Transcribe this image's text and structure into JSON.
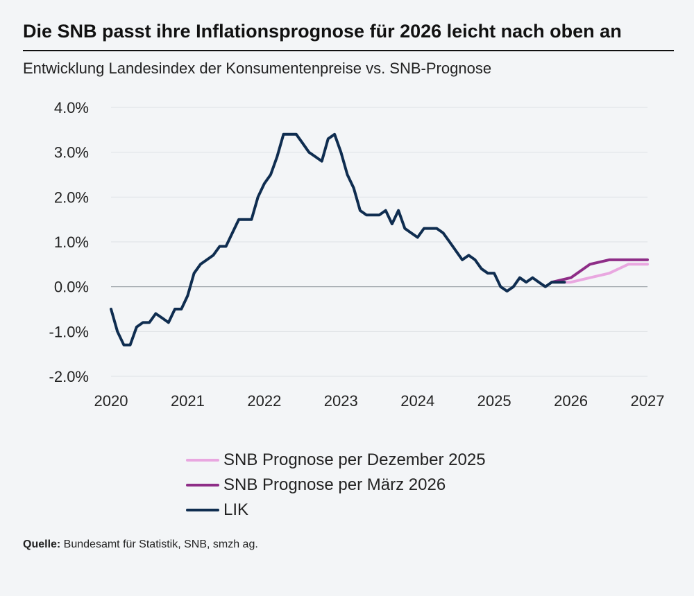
{
  "header": {
    "title": "Die SNB passt ihre Inflationsprognose für 2026 leicht nach oben an",
    "subtitle": "Entwicklung Landesindex der Konsumentenpreise vs. SNB-Prognose"
  },
  "legend": {
    "items": [
      {
        "label": "SNB Prognose per Dezember 2025",
        "color": "#e9a7e0"
      },
      {
        "label": "SNB Prognose per März 2026",
        "color": "#8e2d87"
      },
      {
        "label": "LIK",
        "color": "#0f2d50"
      }
    ]
  },
  "source": {
    "label": "Quelle:",
    "text": " Bundesamt für Statistik, SNB, smzh ag."
  },
  "chart_data": {
    "type": "line",
    "title": "Die SNB passt ihre Inflationsprognose für 2026 leicht nach oben an",
    "xlabel": "",
    "ylabel": "",
    "xlim": [
      2020,
      2027
    ],
    "ylim": [
      -2.0,
      4.0
    ],
    "x_ticks": [
      2020,
      2021,
      2022,
      2023,
      2024,
      2025,
      2026,
      2027
    ],
    "x_tick_labels": [
      "2020",
      "2021",
      "2022",
      "2023",
      "2024",
      "2025",
      "2026",
      "2027"
    ],
    "y_ticks": [
      4.0,
      3.0,
      2.0,
      1.0,
      0.0,
      -1.0,
      -2.0
    ],
    "y_tick_labels": [
      "4.0%",
      "3.0%",
      "2.0%",
      "1.0%",
      "0.0%",
      "-1.0%",
      "-2.0%"
    ],
    "grid": true,
    "series": [
      {
        "name": "SNB Prognose per Dezember 2025",
        "color": "#e9a7e0",
        "x": [
          2025.75,
          2026.0,
          2026.25,
          2026.5,
          2026.75,
          2027.0
        ],
        "y": [
          0.1,
          0.1,
          0.2,
          0.3,
          0.5,
          0.5
        ]
      },
      {
        "name": "SNB Prognose per März 2026",
        "color": "#8e2d87",
        "x": [
          2025.75,
          2026.0,
          2026.25,
          2026.5,
          2026.75,
          2027.0
        ],
        "y": [
          0.1,
          0.2,
          0.5,
          0.6,
          0.6,
          0.6
        ]
      },
      {
        "name": "LIK",
        "color": "#0f2d50",
        "x": [
          2020.0,
          2020.083,
          2020.167,
          2020.25,
          2020.333,
          2020.417,
          2020.5,
          2020.583,
          2020.667,
          2020.75,
          2020.833,
          2020.917,
          2021.0,
          2021.083,
          2021.167,
          2021.25,
          2021.333,
          2021.417,
          2021.5,
          2021.583,
          2021.667,
          2021.75,
          2021.833,
          2021.917,
          2022.0,
          2022.083,
          2022.167,
          2022.25,
          2022.333,
          2022.417,
          2022.5,
          2022.583,
          2022.667,
          2022.75,
          2022.833,
          2022.917,
          2023.0,
          2023.083,
          2023.167,
          2023.25,
          2023.333,
          2023.417,
          2023.5,
          2023.583,
          2023.667,
          2023.75,
          2023.833,
          2023.917,
          2024.0,
          2024.083,
          2024.167,
          2024.25,
          2024.333,
          2024.417,
          2024.5,
          2024.583,
          2024.667,
          2024.75,
          2024.833,
          2024.917,
          2025.0,
          2025.083,
          2025.167,
          2025.25,
          2025.333,
          2025.417,
          2025.5,
          2025.583,
          2025.667,
          2025.75,
          2025.833,
          2025.917
        ],
        "y": [
          -0.5,
          -1.0,
          -1.3,
          -1.3,
          -0.9,
          -0.8,
          -0.8,
          -0.6,
          -0.7,
          -0.8,
          -0.5,
          -0.5,
          -0.2,
          0.3,
          0.5,
          0.6,
          0.7,
          0.9,
          0.9,
          1.2,
          1.5,
          1.5,
          1.5,
          2.0,
          2.3,
          2.5,
          2.9,
          3.4,
          3.4,
          3.4,
          3.2,
          3.0,
          2.9,
          2.8,
          3.3,
          3.4,
          3.0,
          2.5,
          2.2,
          1.7,
          1.6,
          1.6,
          1.6,
          1.7,
          1.4,
          1.7,
          1.3,
          1.2,
          1.1,
          1.3,
          1.3,
          1.3,
          1.2,
          1.0,
          0.8,
          0.6,
          0.7,
          0.6,
          0.4,
          0.3,
          0.3,
          0.0,
          -0.1,
          0.0,
          0.2,
          0.1,
          0.2,
          0.1,
          0.0,
          0.1,
          0.1,
          0.1
        ]
      }
    ]
  }
}
